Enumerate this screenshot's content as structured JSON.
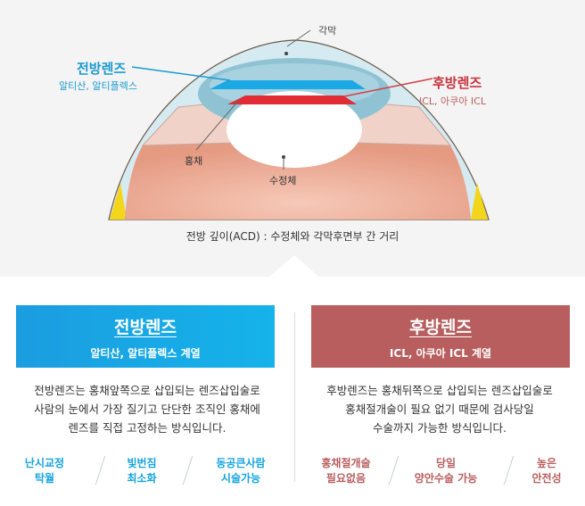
{
  "diagram": {
    "labels": {
      "cornea": "각막",
      "anterior_lens": "전방렌즈",
      "anterior_lens_sub": "알티산, 알티플렉스",
      "posterior_lens": "후방렌즈",
      "posterior_lens_sub": "ICL, 아쿠아 ICL",
      "iris": "홍채",
      "crystalline_lens": "수정체"
    },
    "caption": "전방 깊이(ACD) : 수정체와 각막후면부 간 거리"
  },
  "cards": [
    {
      "title": "전방렌즈",
      "subtitle": "알티산, 알티플렉스 계열",
      "color": "#1aa9e4",
      "description": [
        "전방렌즈는 홍채앞쪽으로 삽입되는 렌즈삽입술로",
        "사람의 눈에서 가장 질기고 단단한 조직인 홍채에",
        "렌즈를 직접 고정하는 방식입니다."
      ],
      "features": [
        {
          "line1": "난시교정",
          "line2": "탁월"
        },
        {
          "line1": "빛번짐",
          "line2": "최소화"
        },
        {
          "line1": "동공큰사람",
          "line2": "시술가능"
        }
      ]
    },
    {
      "title": "후방렌즈",
      "subtitle": "ICL, 아쿠아 ICL 계열",
      "color": "#b85e5e",
      "description": [
        "후방렌즈는 홍채뒤쪽으로 삽입되는 렌즈삽입술로",
        "홍채절개술이 필요 없기 때문에 검사당일",
        "수술까지 가능한 방식입니다."
      ],
      "features": [
        {
          "line1": "홍채절개술",
          "line2": "필요없음"
        },
        {
          "line1": "당일",
          "line2": "양안수술 가능"
        },
        {
          "line1": "높은",
          "line2": "안전성"
        }
      ]
    }
  ]
}
